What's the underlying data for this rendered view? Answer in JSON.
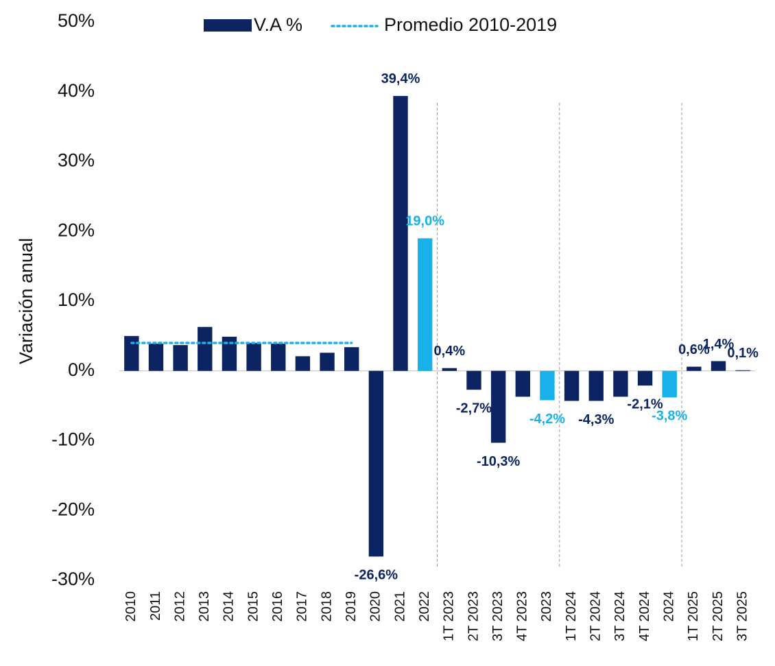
{
  "chart_data": {
    "type": "bar",
    "y_axis_label": "Variación anual",
    "categories": [
      "2010",
      "2011",
      "2012",
      "2013",
      "2014",
      "2015",
      "2016",
      "2017",
      "2018",
      "2019",
      "2020",
      "2021",
      "2022",
      "1T 2023",
      "2T 2023",
      "3T 2023",
      "4T 2023",
      "2023",
      "1T 2024",
      "2T 2024",
      "3T 2024",
      "4T 2024",
      "2024",
      "1T 2025",
      "2T 2025",
      "3T 2025"
    ],
    "series": [
      {
        "name": "V.A %",
        "type": "bar",
        "colors": [
          "#0c2461",
          "#0c2461",
          "#0c2461",
          "#0c2461",
          "#0c2461",
          "#0c2461",
          "#0c2461",
          "#0c2461",
          "#0c2461",
          "#0c2461",
          "#0c2461",
          "#0c2461",
          "#19b1ea",
          "#0c2461",
          "#0c2461",
          "#0c2461",
          "#0c2461",
          "#19b1ea",
          "#0c2461",
          "#0c2461",
          "#0c2461",
          "#0c2461",
          "#19b1ea",
          "#0c2461",
          "#0c2461",
          "#0c2461"
        ],
        "values": [
          5.0,
          3.9,
          3.7,
          6.3,
          4.9,
          4.0,
          3.9,
          2.1,
          2.6,
          3.4,
          -26.6,
          39.4,
          19.0,
          0.4,
          -2.7,
          -10.3,
          -3.7,
          -4.2,
          -4.3,
          -4.3,
          -3.7,
          -2.1,
          -3.8,
          0.6,
          1.4,
          0.1
        ],
        "value_labels": [
          null,
          null,
          null,
          null,
          null,
          null,
          null,
          null,
          null,
          null,
          "-26,6%",
          "39,4%",
          "19,0%",
          "0,4%",
          "-2,7%",
          "-10,3%",
          null,
          "-4,2%",
          null,
          "-4,3%",
          null,
          "-2,1%",
          "-3,8%",
          "0,6%",
          "1,4%",
          "0,1%"
        ]
      },
      {
        "name": "Promedio 2010-2019",
        "type": "line",
        "color": "#19b1ea",
        "values": [
          4.0,
          4.0,
          4.0,
          4.0,
          4.0,
          4.0,
          4.0,
          4.0,
          4.0,
          4.0,
          null,
          null,
          null,
          null,
          null,
          null,
          null,
          null,
          null,
          null,
          null,
          null,
          null,
          null,
          null,
          null
        ]
      }
    ],
    "ylim": [
      -30,
      50
    ],
    "yticks": [
      {
        "value": -30,
        "label": "-30%"
      },
      {
        "value": -20,
        "label": "-20%"
      },
      {
        "value": -10,
        "label": "-10%"
      },
      {
        "value": 0,
        "label": "0%"
      },
      {
        "value": 10,
        "label": "10%"
      },
      {
        "value": 20,
        "label": "20%"
      },
      {
        "value": 30,
        "label": "30%"
      },
      {
        "value": 40,
        "label": "40%"
      },
      {
        "value": 50,
        "label": "50%"
      }
    ]
  }
}
